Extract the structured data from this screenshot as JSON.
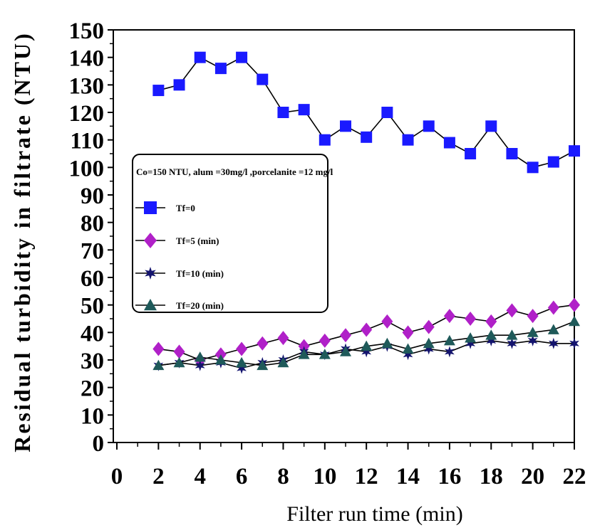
{
  "chart_data": {
    "type": "line",
    "xlabel": "Filter run time (min)",
    "ylabel": "Residual turbidity in filtrate (NTU)",
    "xlim": [
      0,
      22
    ],
    "ylim": [
      0,
      150
    ],
    "x_ticks": [
      "0",
      "2",
      "4",
      "6",
      "8",
      "10",
      "12",
      "14",
      "16",
      "18",
      "20",
      "22"
    ],
    "y_ticks": [
      "0",
      "10",
      "20",
      "30",
      "40",
      "50",
      "60",
      "70",
      "80",
      "90",
      "100",
      "110",
      "120",
      "130",
      "140",
      "150"
    ],
    "grid": false,
    "legend_position": "left",
    "legend_title": "Co=150 NTU, alum =30mg/l ,porcelanite =12 mg/l",
    "x": [
      2,
      3,
      4,
      5,
      6,
      7,
      8,
      9,
      10,
      11,
      12,
      13,
      14,
      15,
      16,
      17,
      18,
      19,
      20,
      21,
      22
    ],
    "series": [
      {
        "name": "Tf=0",
        "marker": "square",
        "color": "#1a1aff",
        "values": [
          128,
          130,
          140,
          136,
          140,
          132,
          120,
          121,
          110,
          115,
          111,
          120,
          110,
          115,
          109,
          105,
          115,
          105,
          100,
          102,
          106
        ]
      },
      {
        "name": "Tf=5 (min)",
        "marker": "diamond",
        "color": "#b020c8",
        "values": [
          34,
          33,
          30,
          32,
          34,
          36,
          38,
          35,
          37,
          39,
          41,
          44,
          40,
          42,
          46,
          45,
          44,
          48,
          46,
          49,
          50
        ]
      },
      {
        "name": "Tf=10 (min)",
        "marker": "star",
        "color": "#14146e",
        "values": [
          28,
          29,
          28,
          29,
          27,
          29,
          30,
          33,
          32,
          34,
          33,
          35,
          32,
          34,
          33,
          36,
          37,
          36,
          37,
          36,
          36
        ]
      },
      {
        "name": "Tf=20 (min)",
        "marker": "triangle",
        "color": "#1f5a5a",
        "values": [
          28,
          29,
          31,
          30,
          29,
          28,
          29,
          32,
          32,
          33,
          35,
          36,
          34,
          36,
          37,
          38,
          39,
          39,
          40,
          41,
          44
        ]
      }
    ]
  }
}
